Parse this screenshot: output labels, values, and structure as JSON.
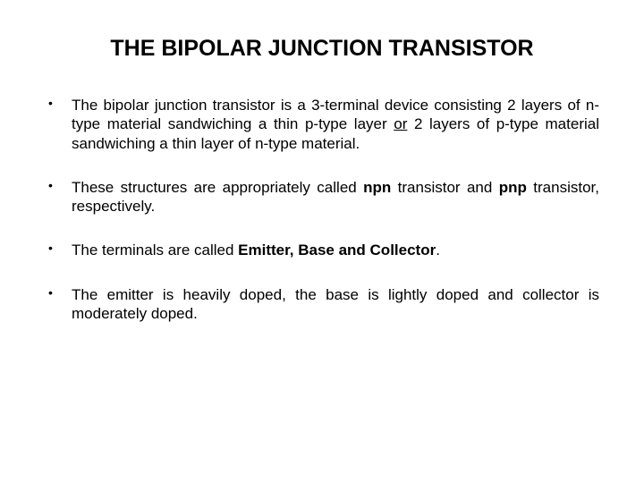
{
  "title": "THE BIPOLAR JUNCTION TRANSISTOR",
  "bullets": [
    {
      "prefix": "The bipolar junction transistor is a 3-terminal device consisting 2 layers of n-type material sandwiching a thin p-type layer ",
      "underlined": "or",
      "suffix": " 2 layers of p-type material sandwiching a thin layer of n-type material."
    },
    {
      "prefix": "These structures are appropriately called ",
      "bold1": "npn",
      "mid": " transistor and ",
      "bold2": "pnp",
      "suffix": " transistor, respectively."
    },
    {
      "prefix": "The terminals are called ",
      "bold1": "Emitter, Base and Collector",
      "suffix": "."
    },
    {
      "prefix": "The emitter is heavily doped, the base is lightly doped and collector is moderately doped.",
      "suffix": ""
    }
  ],
  "style": {
    "background_color": "#ffffff",
    "text_color": "#000000",
    "title_fontsize": 25,
    "title_fontweight": "bold",
    "body_fontsize": 17,
    "bullet_marker": "•",
    "font_family": "Arial"
  }
}
